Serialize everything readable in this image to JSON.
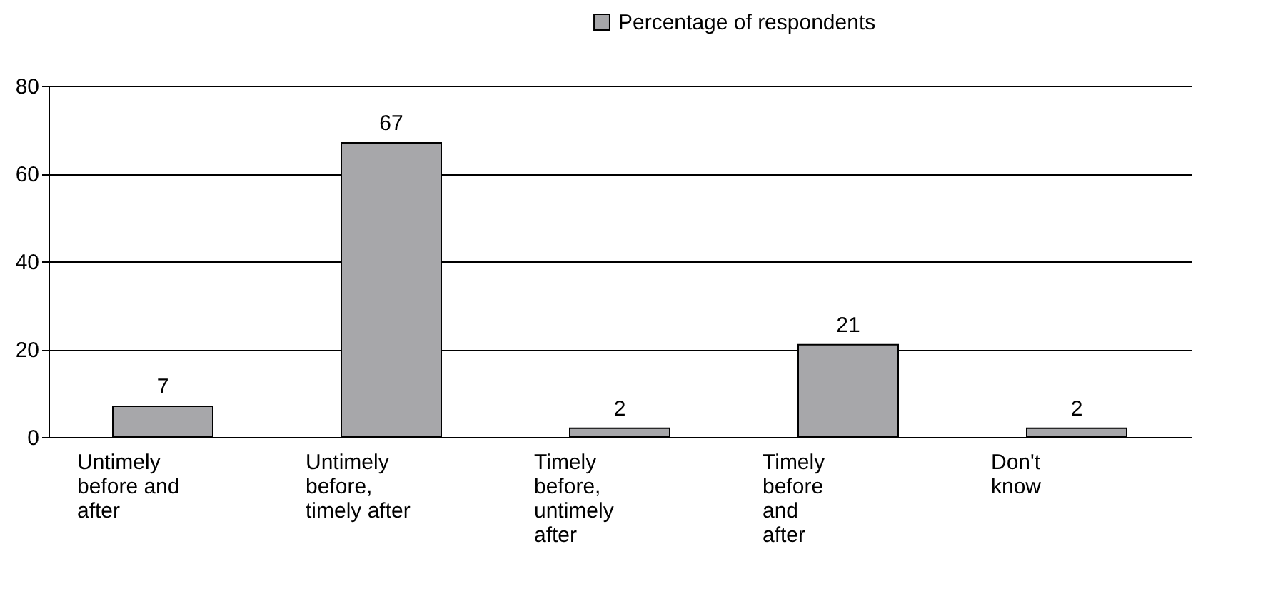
{
  "chart_data": {
    "type": "bar",
    "categories": [
      "Untimely\nbefore and\nafter",
      "Untimely\nbefore,\ntimely after",
      "Timely\nbefore,\nuntimely\nafter",
      "Timely\nbefore\nand\nafter",
      "Don't\nknow"
    ],
    "series": [
      {
        "name": "Percentage of respondents",
        "color": "#a7a7aa",
        "values": [
          7,
          67,
          2,
          21,
          2
        ]
      }
    ],
    "ylim": [
      0,
      80
    ],
    "yticks": [
      0,
      20,
      40,
      60,
      80
    ],
    "grid": "y",
    "legend": "top right",
    "data_labels": true
  }
}
